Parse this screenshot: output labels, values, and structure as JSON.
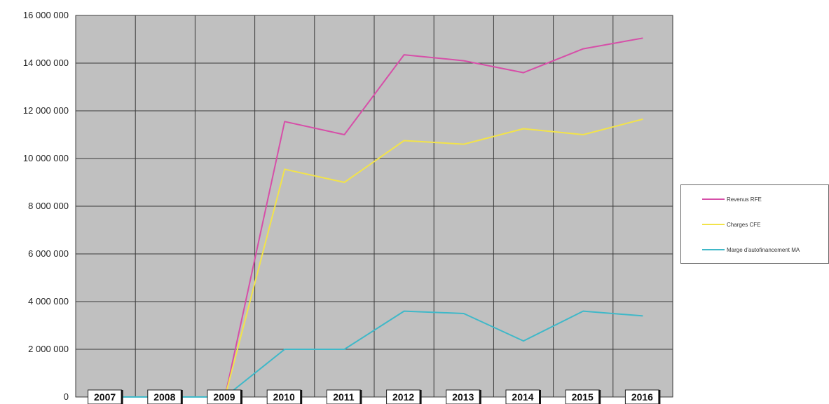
{
  "chart_data": {
    "type": "line",
    "title": "",
    "xlabel": "",
    "ylabel": "",
    "ylim": [
      0,
      16000000
    ],
    "grid": true,
    "legend_position": "right",
    "plot_background": "#c0c0c0",
    "categories": [
      "2007",
      "2008",
      "2009",
      "2010",
      "2011",
      "2012",
      "2013",
      "2014",
      "2015",
      "2016"
    ],
    "y_ticks": [
      {
        "value": 0,
        "label": "0"
      },
      {
        "value": 2000000,
        "label": "2 000 000"
      },
      {
        "value": 4000000,
        "label": "4 000 000"
      },
      {
        "value": 6000000,
        "label": "6 000 000"
      },
      {
        "value": 8000000,
        "label": "8 000 000"
      },
      {
        "value": 10000000,
        "label": "10 000 000"
      },
      {
        "value": 12000000,
        "label": "12 000 000"
      },
      {
        "value": 14000000,
        "label": "14 000 000"
      },
      {
        "value": 16000000,
        "label": "16 000 000"
      }
    ],
    "series": [
      {
        "name": "Revenus RFE",
        "color": "#d64fa8",
        "values": [
          0,
          0,
          0,
          11550000,
          11000000,
          14350000,
          14100000,
          13600000,
          14600000,
          15050000
        ]
      },
      {
        "name": "Charges CFE",
        "color": "#f2e34a",
        "values": [
          0,
          0,
          0,
          9550000,
          9000000,
          10750000,
          10600000,
          11250000,
          11000000,
          11650000
        ]
      },
      {
        "name": "Marge d'autofinancement MA",
        "color": "#3fb8c8",
        "values": [
          0,
          0,
          0,
          2000000,
          2000000,
          3600000,
          3500000,
          2350000,
          3600000,
          3400000
        ]
      }
    ]
  }
}
